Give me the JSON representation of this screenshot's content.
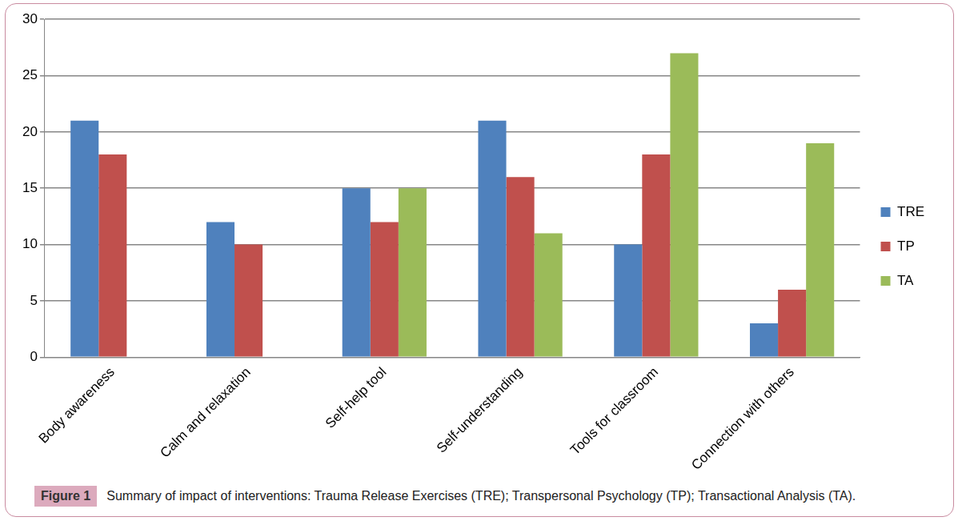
{
  "chart_data": {
    "type": "bar",
    "title": "Figure 1",
    "subtitle": "Summary of impact of interventions: Trauma Release Exercises (TRE); Transpersonal Psychology (TP); Transactional Analysis (TA).",
    "categories": [
      "Body awareness",
      "Calm and relaxation",
      "Self-help tool",
      "Self-understanding",
      "Tools for classroom",
      "Connection with others"
    ],
    "series": [
      {
        "name": "TRE",
        "color": "#4f81bd",
        "values": [
          21,
          12,
          15,
          21,
          10,
          3
        ]
      },
      {
        "name": "TP",
        "color": "#c0504d",
        "values": [
          18,
          10,
          12,
          16,
          18,
          6
        ]
      },
      {
        "name": "TA",
        "color": "#9bbb59",
        "values": [
          null,
          null,
          15,
          11,
          27,
          19
        ]
      }
    ],
    "ylim": [
      0,
      30
    ],
    "yticks": [
      0,
      5,
      10,
      15,
      20,
      25,
      30
    ],
    "grid": true,
    "legend": "right"
  }
}
